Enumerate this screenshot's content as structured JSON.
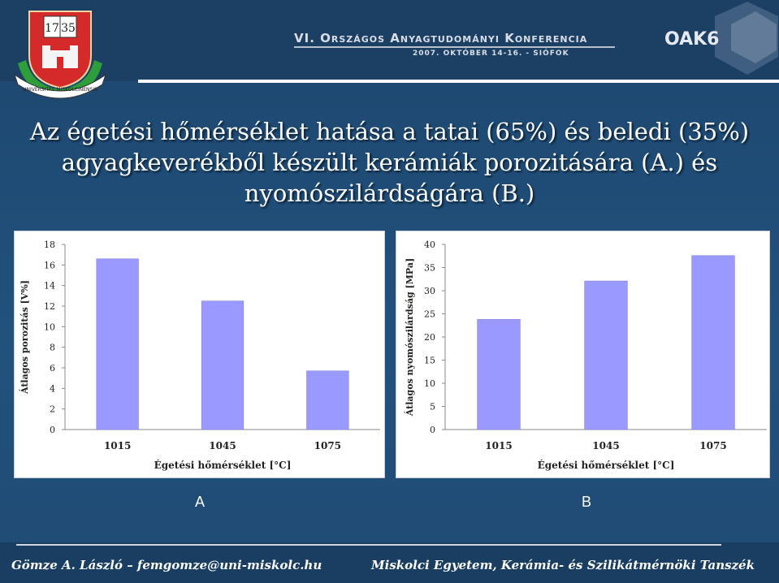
{
  "header": {
    "crest_numbers": [
      "17",
      "35"
    ],
    "crest_motto": "UNIVERSITAS MISKOLCINENSIS",
    "conference_title": "VI. Országos Anyagtudományi Konferencia",
    "conference_date": "2007. OKTÓBER 14-16. - SIÓFOK",
    "logo_text": "OAK6"
  },
  "slide": {
    "title": "Az égetési hőmérséklet hatása a tatai (65%) és beledi (35%) agyagkeverékből készült kerámiák porozitására (A.) és nyomószilárdságára (B.)",
    "label_a": "A",
    "label_b": "B"
  },
  "footer": {
    "left": "Gömze A. László – femgomze@uni-miskolc.hu",
    "right": "Miskolci Egyetem, Kerámia- és Szilikátmérnöki Tanszék"
  },
  "colors": {
    "bar_fill": "#9999ff",
    "background": "#1f4a73"
  },
  "chart_data": [
    {
      "type": "bar",
      "categories": [
        "1015",
        "1045",
        "1075"
      ],
      "values": [
        16.6,
        12.5,
        5.7
      ],
      "xlabel": "Égetési hőmérséklet [°C]",
      "ylabel": "Átlagos porozitás [V%]",
      "ylim": [
        0,
        18
      ],
      "yticks": [
        "0",
        "2",
        "4",
        "6",
        "8",
        "10",
        "12",
        "14",
        "16",
        "18"
      ],
      "grid": false
    },
    {
      "type": "bar",
      "categories": [
        "1015",
        "1045",
        "1075"
      ],
      "values": [
        23.8,
        32.1,
        37.6
      ],
      "xlabel": "Égetési hőmérséklet [°C]",
      "ylabel": "Átlagos nyomószilárdság [MPa]",
      "ylim": [
        0,
        40
      ],
      "yticks": [
        "0",
        "5",
        "10",
        "15",
        "20",
        "25",
        "30",
        "35",
        "40"
      ],
      "grid": false
    }
  ]
}
